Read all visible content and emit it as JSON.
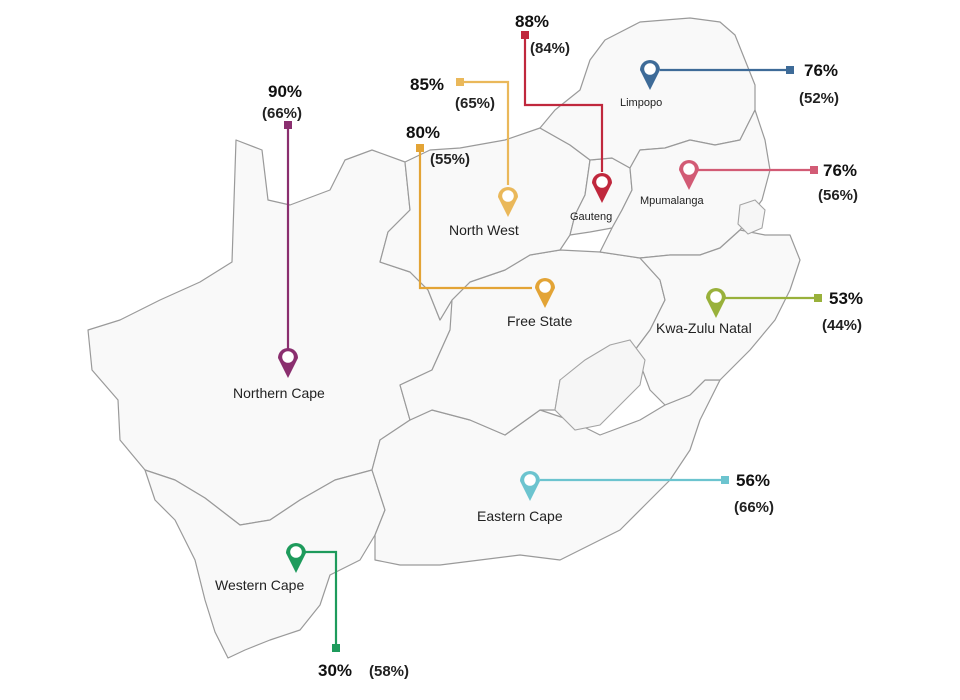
{
  "provinces": [
    {
      "id": "eastern-cape",
      "number": "1",
      "name": "Eastern Cape",
      "value": "56%",
      "sub": "(66%)",
      "color": "#6cc4cf"
    },
    {
      "id": "free-state",
      "number": "2",
      "name": "Free State",
      "value": "",
      "sub": "",
      "color": "#e3a436"
    },
    {
      "id": "gauteng",
      "number": "3",
      "name": "Gauteng",
      "value": "88%",
      "sub": "(84%)",
      "color": "#c0283d"
    },
    {
      "id": "kwazulu-natal",
      "number": "4",
      "name": "Kwa-Zulu Natal",
      "value": "53%",
      "sub": "(44%)",
      "color": "#99b13b"
    },
    {
      "id": "limpopo",
      "number": "5",
      "name": "Limpopo",
      "value": "76%",
      "sub": "(52%)",
      "color": "#3e6b98"
    },
    {
      "id": "mpumalanga",
      "number": "6",
      "name": "Mpumalanga",
      "value": "76%",
      "sub": "(56%)",
      "color": "#d25b75"
    },
    {
      "id": "northern-cape",
      "number": "7",
      "name": "Northern Cape",
      "value": "90%",
      "sub": "(66%)",
      "color": "#8a2f6f"
    },
    {
      "id": "north-west",
      "number": "8",
      "name": "North West",
      "value": "85%",
      "sub": "(65%)",
      "color": "#eab85a"
    },
    {
      "id": "western-cape",
      "number": "9",
      "name": "Western Cape",
      "value": "30%",
      "sub": "(58%)",
      "color": "#1e9b5c"
    }
  ],
  "extra_callouts": [
    {
      "id": "free-state-callout",
      "value": "80%",
      "sub": "(55%)",
      "color": "#e3a436"
    }
  ],
  "icons": {
    "pin": "map-pin-icon",
    "marker": "square-marker-icon"
  }
}
